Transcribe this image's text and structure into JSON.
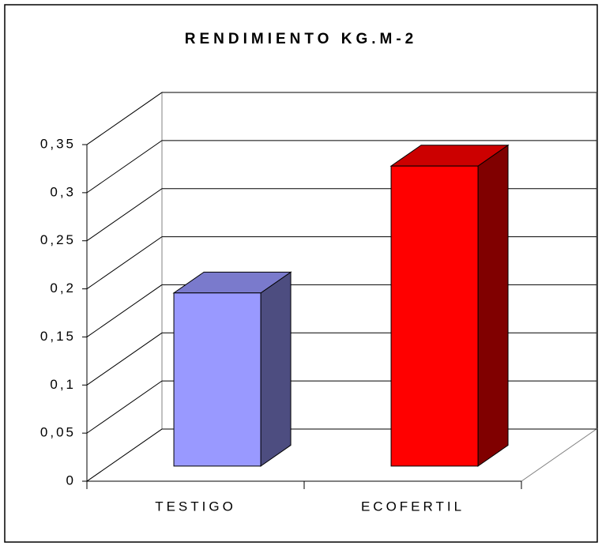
{
  "chart_data": {
    "type": "bar3d",
    "title": "RENDIMIENTO KG.M-2",
    "categories": [
      "TESTIGO",
      "ECOFERTIL"
    ],
    "values": [
      0.18,
      0.312
    ],
    "colors": [
      "#9999ff",
      "#ff0000"
    ],
    "ylim": [
      0,
      0.35
    ],
    "yticks": [
      0,
      {
        "value": 0.05,
        "label": "0,05"
      },
      {
        "value": 0.1,
        "label": "0,1"
      },
      {
        "value": 0.15,
        "label": "0,15"
      },
      {
        "value": 0.2,
        "label": "0,2"
      },
      {
        "value": 0.25,
        "label": "0,25"
      },
      {
        "value": 0.3,
        "label": "0,3"
      },
      {
        "value": 0.35,
        "label": "0,35"
      }
    ],
    "grid": true
  }
}
